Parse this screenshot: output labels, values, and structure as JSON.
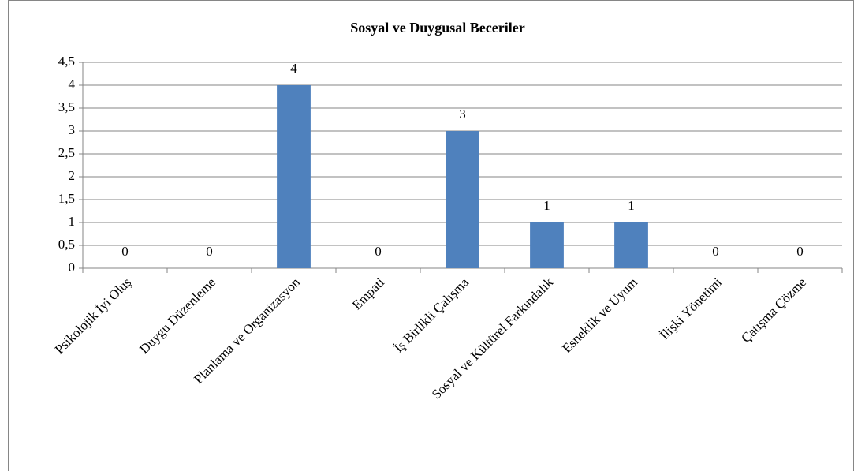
{
  "chart_data": {
    "type": "bar",
    "title": "Sosyal ve Duygusal Beceriler",
    "categories": [
      "Psikolojik İyi Oluş",
      "Duygu Düzenleme",
      "Planlama ve Organizasyon",
      "Empati",
      "İş Birlikli Çalışma",
      "Sosyal ve Kültürel Farkındalık",
      "Esneklik ve Uyum",
      "İlişki Yönetimi",
      "Çatışma Çözme"
    ],
    "values": [
      0,
      0,
      4,
      0,
      3,
      1,
      1,
      0,
      0
    ],
    "color": "#4f81bd",
    "ylim": [
      0,
      4.5
    ],
    "yticks": [
      0,
      {
        "value": 0.5,
        "label": "0,5"
      },
      1,
      {
        "value": 1.5,
        "label": "1,5"
      },
      2,
      {
        "value": 2.5,
        "label": "2,5"
      },
      3,
      {
        "value": 3.5,
        "label": "3,5"
      },
      4,
      {
        "value": 4.5,
        "label": "4,5"
      }
    ],
    "grid": true
  }
}
